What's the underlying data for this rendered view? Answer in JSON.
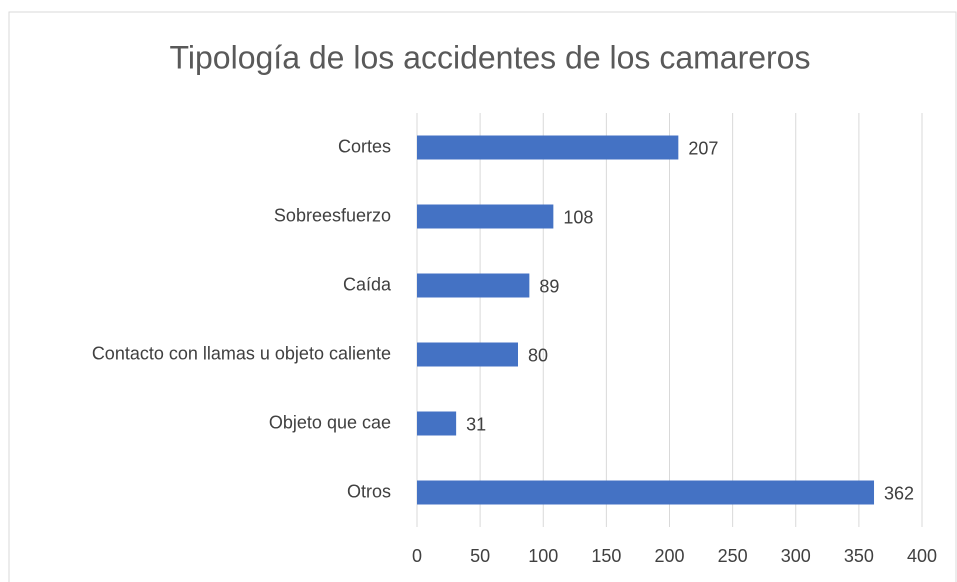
{
  "chart_data": {
    "type": "bar",
    "orientation": "horizontal",
    "title": "Tipología de los accidentes de los camareros",
    "categories": [
      "Cortes",
      "Sobreesfuerzo",
      "Caída",
      "Contacto con llamas u objeto caliente",
      "Objeto que cae",
      "Otros"
    ],
    "values": [
      207,
      108,
      89,
      80,
      31,
      362
    ],
    "color": "#4472c4",
    "xlim": [
      0,
      400
    ],
    "xticks": [
      0,
      50,
      100,
      150,
      200,
      250,
      300,
      350,
      400
    ],
    "grid": true,
    "data_labels": true
  }
}
